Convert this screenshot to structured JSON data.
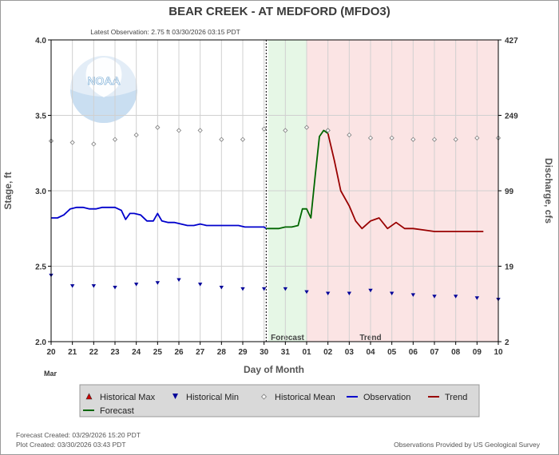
{
  "chart_data": {
    "type": "line",
    "title": "BEAR CREEK - AT MEDFORD  (MFDO3)",
    "subtitle": "Latest Observation: 2.75 ft 03/30/2026 03:15 PDT",
    "xlabel": "Day of Month",
    "ylabel": "Stage, ft",
    "ylabel_right": "Discharge, cfs",
    "x_month_label": "Mar",
    "xlim": [
      20,
      41
    ],
    "ylim": [
      2.0,
      4.0
    ],
    "grid": true,
    "x_ticks": [
      "20",
      "21",
      "22",
      "23",
      "24",
      "25",
      "26",
      "27",
      "28",
      "29",
      "30",
      "31",
      "01",
      "02",
      "03",
      "04",
      "05",
      "06",
      "07",
      "08",
      "09",
      "10"
    ],
    "y_ticks": [
      "2.0",
      "2.5",
      "3.0",
      "3.5",
      "4.0"
    ],
    "y_tick_values": [
      2.0,
      2.5,
      3.0,
      3.5,
      4.0
    ],
    "y2_ticks": [
      "2",
      "19",
      "99",
      "249",
      "427"
    ],
    "y2_tick_values": [
      2.0,
      2.5,
      3.0,
      3.5,
      4.0
    ],
    "now_x": 30.1,
    "zones": [
      {
        "label": "Forecast",
        "from": 30.2,
        "to": 32.0,
        "color": "#e6f7e6"
      },
      {
        "label": "Trend",
        "from": 32.0,
        "to": 41.0,
        "color": "#fbe4e4"
      }
    ],
    "series": [
      {
        "name": "Observation",
        "color": "#0000cc",
        "x": [
          20.0,
          20.3,
          20.6,
          20.9,
          21.2,
          21.5,
          21.8,
          22.1,
          22.4,
          22.7,
          23.0,
          23.3,
          23.5,
          23.7,
          23.9,
          24.2,
          24.5,
          24.8,
          25.0,
          25.2,
          25.5,
          25.8,
          26.1,
          26.4,
          26.7,
          27.0,
          27.3,
          27.6,
          27.9,
          28.2,
          28.5,
          28.8,
          29.1,
          29.4,
          29.7,
          30.0,
          30.1
        ],
        "y": [
          2.82,
          2.82,
          2.84,
          2.88,
          2.89,
          2.89,
          2.88,
          2.88,
          2.89,
          2.89,
          2.89,
          2.87,
          2.81,
          2.85,
          2.85,
          2.84,
          2.8,
          2.8,
          2.85,
          2.8,
          2.79,
          2.79,
          2.78,
          2.77,
          2.77,
          2.78,
          2.77,
          2.77,
          2.77,
          2.77,
          2.77,
          2.77,
          2.76,
          2.76,
          2.76,
          2.76,
          2.75
        ]
      },
      {
        "name": "Forecast",
        "color": "#006600",
        "x": [
          30.1,
          30.4,
          30.7,
          31.0,
          31.3,
          31.6,
          31.8,
          32.0,
          32.2,
          32.4,
          32.6,
          32.8,
          33.0
        ],
        "y": [
          2.75,
          2.75,
          2.75,
          2.76,
          2.76,
          2.77,
          2.88,
          2.88,
          2.82,
          3.1,
          3.36,
          3.4,
          3.38
        ]
      },
      {
        "name": "Trend",
        "color": "#990000",
        "x": [
          33.0,
          33.3,
          33.6,
          34.0,
          34.3,
          34.6,
          35.0,
          35.4,
          35.8,
          36.2,
          36.6,
          37.0,
          37.5,
          38.0,
          38.5,
          39.0,
          39.5,
          40.0,
          40.3
        ],
        "y": [
          3.38,
          3.2,
          3.0,
          2.9,
          2.8,
          2.75,
          2.8,
          2.82,
          2.75,
          2.79,
          2.75,
          2.75,
          2.74,
          2.73,
          2.73,
          2.73,
          2.73,
          2.73,
          2.73
        ]
      },
      {
        "name": "Historical Mean",
        "color": "#888888",
        "x": [
          20,
          21,
          22,
          23,
          24,
          25,
          26,
          27,
          28,
          29,
          30,
          31,
          32,
          33,
          34,
          35,
          36,
          37,
          38,
          39,
          40,
          41
        ],
        "y": [
          3.33,
          3.32,
          3.31,
          3.34,
          3.37,
          3.42,
          3.4,
          3.4,
          3.34,
          3.34,
          3.41,
          3.4,
          3.42,
          3.4,
          3.37,
          3.35,
          3.35,
          3.34,
          3.34,
          3.34,
          3.35,
          3.35
        ]
      },
      {
        "name": "Historical Min",
        "color": "#000099",
        "x": [
          20,
          21,
          22,
          23,
          24,
          25,
          26,
          27,
          28,
          29,
          30,
          31,
          32,
          33,
          34,
          35,
          36,
          37,
          38,
          39,
          40,
          41
        ],
        "y": [
          2.44,
          2.37,
          2.37,
          2.36,
          2.38,
          2.39,
          2.41,
          2.38,
          2.36,
          2.35,
          2.35,
          2.35,
          2.33,
          2.32,
          2.32,
          2.34,
          2.32,
          2.31,
          2.3,
          2.3,
          2.29,
          2.28
        ]
      }
    ],
    "legend_position": "bottom",
    "legend": [
      {
        "label": "Historical Max",
        "marker": "triangle-up",
        "color": "#cc0000"
      },
      {
        "label": "Historical Min",
        "marker": "triangle-down",
        "color": "#000099"
      },
      {
        "label": "Historical Mean",
        "marker": "diamond",
        "color": "#888888"
      },
      {
        "label": "Observation",
        "marker": "line",
        "color": "#0000cc"
      },
      {
        "label": "Trend",
        "marker": "line",
        "color": "#990000"
      },
      {
        "label": "Forecast",
        "marker": "line",
        "color": "#006600"
      }
    ]
  },
  "footer": {
    "forecast_created": "Forecast Created: 03/29/2026 15:20 PDT",
    "plot_created": "Plot Created: 03/30/2026 03:43 PDT",
    "provider": "Observations Provided by US Geological Survey"
  },
  "watermark": {
    "text": "NOAA",
    "color": "#4a90c8"
  }
}
